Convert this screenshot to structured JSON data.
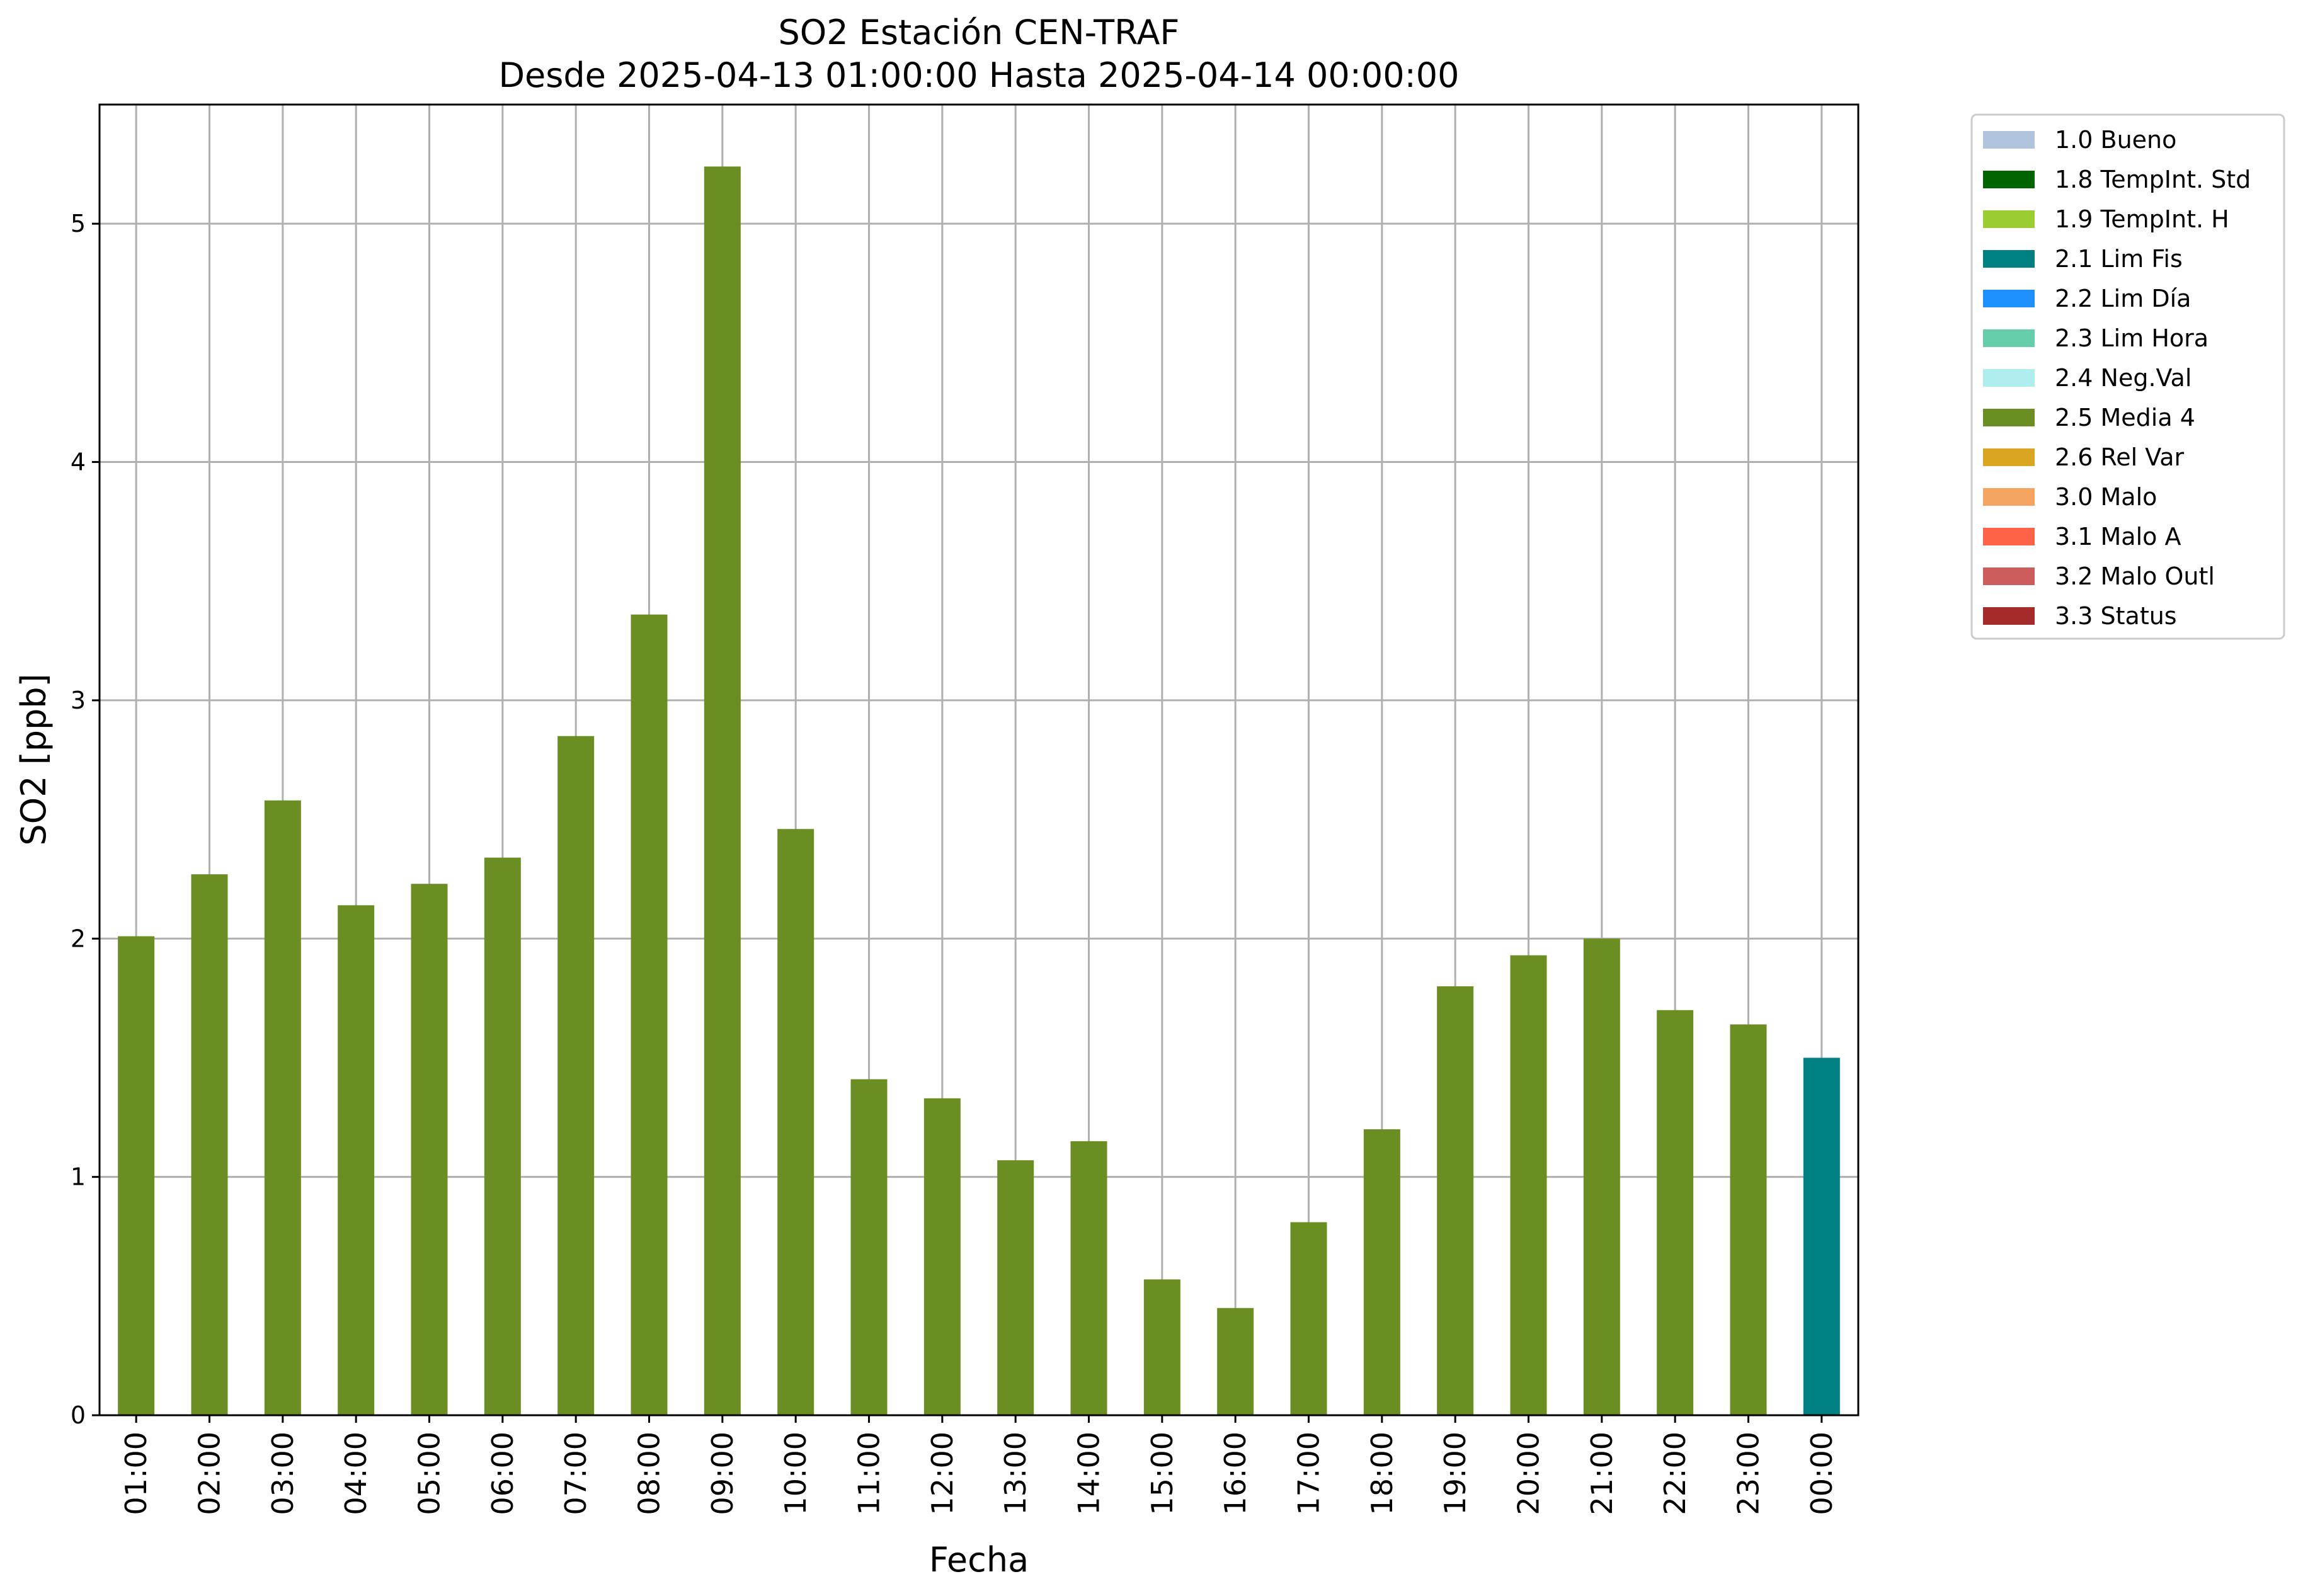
{
  "chart_data": {
    "type": "bar",
    "title": "SO2 Estación CEN-TRAF",
    "subtitle": "Desde 2025-04-13 01:00:00 Hasta 2025-04-14 00:00:00",
    "xlabel": "Fecha",
    "ylabel": "SO2 [ppb]",
    "ylim": [
      0,
      5.5
    ],
    "yticks": [
      "0",
      "1",
      "2",
      "3",
      "4",
      "5"
    ],
    "grid": true,
    "legend_position": "outside-right",
    "categories": [
      "01:00",
      "02:00",
      "03:00",
      "04:00",
      "05:00",
      "06:00",
      "07:00",
      "08:00",
      "09:00",
      "10:00",
      "11:00",
      "12:00",
      "13:00",
      "14:00",
      "15:00",
      "16:00",
      "17:00",
      "18:00",
      "19:00",
      "20:00",
      "21:00",
      "22:00",
      "23:00",
      "00:00"
    ],
    "values": [
      2.01,
      2.27,
      2.58,
      2.14,
      2.23,
      2.34,
      2.85,
      3.36,
      5.24,
      2.46,
      1.41,
      1.33,
      1.07,
      1.15,
      0.57,
      0.45,
      0.81,
      1.2,
      1.8,
      1.93,
      2.0,
      1.7,
      1.64,
      1.5
    ],
    "flags": [
      "2.5 Media 4",
      "2.5 Media 4",
      "2.5 Media 4",
      "2.5 Media 4",
      "2.5 Media 4",
      "2.5 Media 4",
      "2.5 Media 4",
      "2.5 Media 4",
      "2.5 Media 4",
      "2.5 Media 4",
      "2.5 Media 4",
      "2.5 Media 4",
      "2.5 Media 4",
      "2.5 Media 4",
      "2.5 Media 4",
      "2.5 Media 4",
      "2.5 Media 4",
      "2.5 Media 4",
      "2.5 Media 4",
      "2.5 Media 4",
      "2.5 Media 4",
      "2.5 Media 4",
      "2.5 Media 4",
      "2.1 Lim Fis"
    ],
    "legend": [
      {
        "label": "1.0 Bueno",
        "color": "#b0c4de"
      },
      {
        "label": "1.8 TempInt. Std",
        "color": "#006400"
      },
      {
        "label": "1.9 TempInt. H",
        "color": "#9acd32"
      },
      {
        "label": "2.1 Lim Fis",
        "color": "#008080"
      },
      {
        "label": "2.2 Lim Día",
        "color": "#1e90ff"
      },
      {
        "label": "2.3 Lim Hora",
        "color": "#66cdaa"
      },
      {
        "label": "2.4 Neg.Val",
        "color": "#afeeee"
      },
      {
        "label": "2.5 Media 4",
        "color": "#6b8e23"
      },
      {
        "label": "2.6 Rel Var",
        "color": "#daa520"
      },
      {
        "label": "3.0 Malo",
        "color": "#f4a460"
      },
      {
        "label": "3.1 Malo A",
        "color": "#ff6347"
      },
      {
        "label": "3.2 Malo Outl",
        "color": "#cd5c5c"
      },
      {
        "label": "3.3 Status",
        "color": "#a52a2a"
      }
    ]
  }
}
